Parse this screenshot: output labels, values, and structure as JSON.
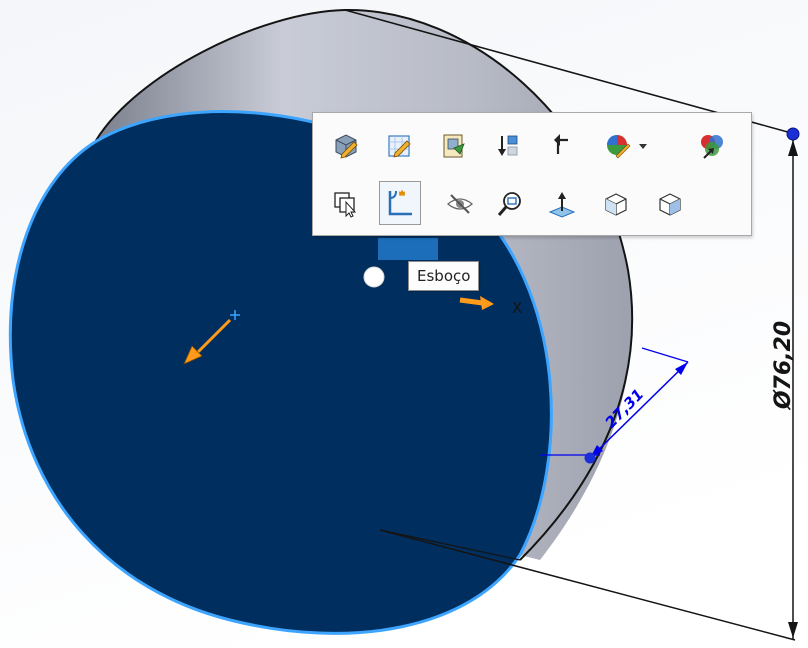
{
  "model": {
    "diameter_dimension": "Ø76,20",
    "depth_dimension": "27,31",
    "triad_axis_label": "X"
  },
  "tooltip": {
    "text": "Esboço"
  },
  "colors": {
    "selected_face": "#002f5f",
    "selection_edge": "#3da5ff",
    "dimension_blue": "#0000ee",
    "triad_orange": "#ff9a1a"
  },
  "toolbar": {
    "row1": [
      {
        "icon": "edit-feature-icon"
      },
      {
        "icon": "edit-sketch-icon"
      },
      {
        "icon": "edit-part-icon"
      },
      {
        "icon": "rollback-icon"
      },
      {
        "icon": "parent-child-icon"
      },
      {
        "icon": "appearance-icon"
      },
      {
        "icon": "appearance-dropdown-icon"
      },
      {
        "icon": "copy-appearance-icon"
      }
    ],
    "row2": [
      {
        "icon": "select-other-icon"
      },
      {
        "icon": "sketch-icon"
      },
      {
        "icon": "hide-icon"
      },
      {
        "icon": "zoom-to-selection-icon"
      },
      {
        "icon": "normal-to-icon"
      },
      {
        "icon": "isometric-view-icon"
      },
      {
        "icon": "view-orientation-icon"
      }
    ]
  }
}
